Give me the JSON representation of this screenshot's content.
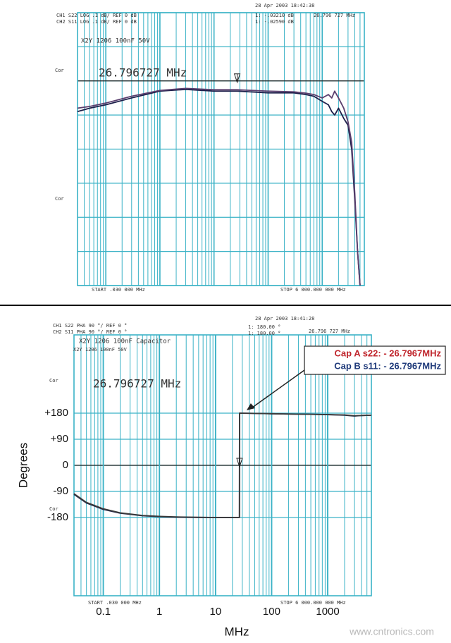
{
  "chart_data": [
    {
      "type": "line",
      "header": [
        "CH1 S22 LOG .1 dB/ REF 0 dB",
        "CH2 S11 LOG .1 dB/ REF 0 dB"
      ],
      "date": "28 Apr 2003 18:42:38",
      "marker_readouts": [
        "1: -.03210 dB",
        "1: -.02590 dB"
      ],
      "marker_freq": "26.796 727 MHz",
      "title": "X2Y 1206 100nF 50V",
      "side_labels": [
        "Cor",
        "Cor"
      ],
      "marker_label": "26.796727 MHz",
      "marker_x": 26.796727,
      "start": "START .030 000 MHz",
      "stop": "STOP 6 000.000 000 MHz",
      "log_x": true,
      "xlim": [
        0.03,
        6000
      ],
      "ylim": [
        -0.6,
        0.2
      ],
      "yticks": [
        -0.6,
        -0.5,
        -0.4,
        -0.3,
        -0.2,
        -0.1,
        0,
        0.1,
        0.2
      ],
      "tick_labels": false,
      "grid": true,
      "x": [
        0.03,
        0.05,
        0.1,
        0.3,
        1,
        3,
        10,
        26.8,
        100,
        300,
        500,
        700,
        1000,
        1300,
        1500,
        1700,
        2000,
        2500,
        3000,
        3500,
        4000,
        4500,
        5000
      ],
      "series": [
        {
          "color": "#1c1f4a",
          "values": [
            -0.09,
            -0.08,
            -0.07,
            -0.05,
            -0.03,
            -0.025,
            -0.03,
            -0.03,
            -0.035,
            -0.035,
            -0.04,
            -0.045,
            -0.06,
            -0.07,
            -0.09,
            -0.1,
            -0.08,
            -0.11,
            -0.13,
            -0.2,
            -0.35,
            -0.5,
            -0.6
          ]
        },
        {
          "color": "#5a3f6e",
          "values": [
            -0.08,
            -0.075,
            -0.065,
            -0.045,
            -0.028,
            -0.022,
            -0.026,
            -0.026,
            -0.03,
            -0.032,
            -0.036,
            -0.04,
            -0.05,
            -0.04,
            -0.05,
            -0.03,
            -0.05,
            -0.08,
            -0.12,
            -0.18,
            -0.33,
            -0.5,
            -0.6
          ]
        }
      ]
    },
    {
      "type": "line",
      "header": [
        "CH1 S22 PHA 90 °/ REF 0 °",
        "CH2 S11 PHA 90 °/ REF 0 °"
      ],
      "date": "28 Apr 2003 18:41:28",
      "marker_readouts": [
        "1: 180.00 °",
        "1: 180.00 °"
      ],
      "marker_freq": "26.796 727 MHz",
      "title": "X2Y 1206 100nF Capacitor",
      "subtitle": "X2Y 1206 100nF 50V",
      "side_labels": [
        "Cor",
        "Cor"
      ],
      "marker_label": "26.796727 MHz",
      "marker_x": 26.796727,
      "start": "START .030 000 MHz",
      "stop": "STOP 6 000.000 000 MHz",
      "annotations": [
        {
          "text": "Cap A s22: - 26.7967MHz",
          "color": "#c0262d"
        },
        {
          "text": "Cap B s11: - 26.7967MHz",
          "color": "#1f3a7a"
        }
      ],
      "ylabel": "Degrees",
      "xlabel": "MHz",
      "log_x": true,
      "xlim": [
        0.03,
        6000
      ],
      "xticks": [
        0.1,
        1,
        10,
        100,
        1000
      ],
      "ylim": [
        -450,
        450
      ],
      "yticks": [
        {
          "value": 180,
          "label": "+180"
        },
        {
          "value": 90,
          "label": "+90"
        },
        0,
        -90,
        -180
      ],
      "tick_labels": true,
      "grid": true,
      "x": [
        0.03,
        0.05,
        0.1,
        0.2,
        0.5,
        1,
        2,
        5,
        10,
        20,
        26.7,
        26.8,
        50,
        100,
        200,
        500,
        1000,
        2000,
        3000,
        4000,
        6000
      ],
      "series": [
        {
          "color": "#1c1f4a",
          "values": [
            -100,
            -130,
            -152,
            -165,
            -174,
            -177,
            -179,
            -180,
            -180,
            -180,
            -180,
            180,
            179,
            178,
            177,
            176,
            175,
            173,
            170,
            172,
            173
          ]
        },
        {
          "color": "#3a3a3a",
          "values": [
            -98,
            -128,
            -150,
            -164,
            -173,
            -176,
            -178,
            -179,
            -180,
            -180,
            -180,
            180,
            179,
            178,
            177,
            176,
            175,
            174,
            171,
            172,
            173
          ]
        }
      ]
    }
  ],
  "watermark": "www.cntronics.com"
}
